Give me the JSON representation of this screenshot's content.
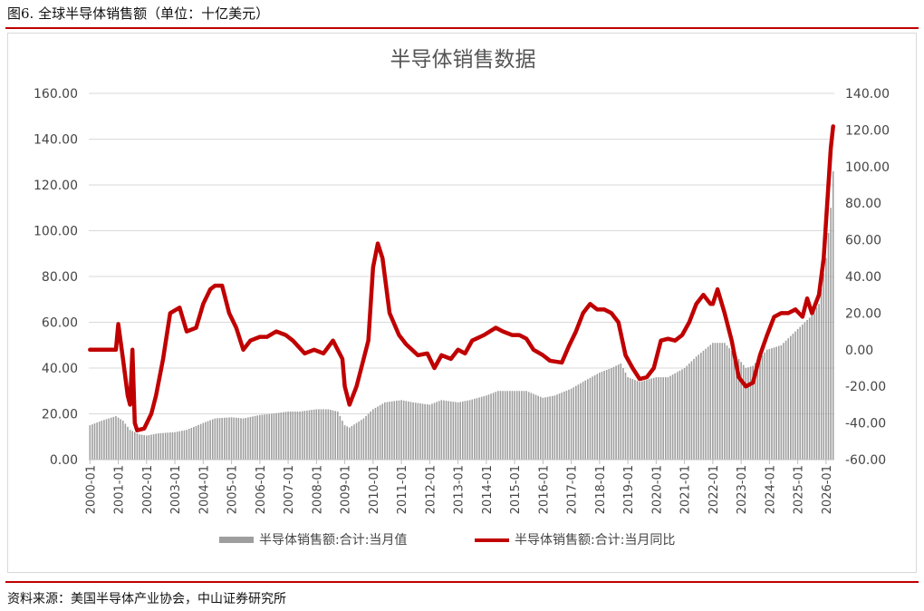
{
  "caption": "图6. 全球半导体销售额（单位：十亿美元）",
  "source": "资料来源：美国半导体产业协会，中山证券研究所",
  "colors": {
    "accent": "#c00000",
    "bar": "#9e9e9e",
    "grid": "#d9d9d9"
  },
  "chart_data": {
    "type": "bar+line",
    "title": "半导体销售数据",
    "grid": true,
    "legend_position": "bottom",
    "left_axis": {
      "min": 0,
      "max": 160,
      "step": 20,
      "ticks": [
        "0.00",
        "20.00",
        "40.00",
        "60.00",
        "80.00",
        "100.00",
        "120.00",
        "140.00",
        "160.00"
      ]
    },
    "right_axis": {
      "min": -60,
      "max": 140,
      "step": 20,
      "ticks": [
        "-60.00",
        "-40.00",
        "-20.00",
        "0.00",
        "20.00",
        "40.00",
        "60.00",
        "80.00",
        "100.00",
        "120.00",
        "140.00"
      ]
    },
    "x_ticks": [
      "2000-01",
      "2001-01",
      "2002-01",
      "2003-01",
      "2004-01",
      "2005-01",
      "2006-01",
      "2007-01",
      "2008-01",
      "2009-01",
      "2010-01",
      "2011-01",
      "2012-01",
      "2013-01",
      "2014-01",
      "2015-01",
      "2016-01",
      "2017-01",
      "2018-01",
      "2019-01",
      "2020-01",
      "2021-01",
      "2022-01",
      "2023-01",
      "2024-01",
      "2025-01",
      "2026-01"
    ],
    "x_start": "2000-01",
    "x_end": "2026-04",
    "series": [
      {
        "name": "半导体销售额:合计:当月值",
        "type": "bar",
        "axis": "left",
        "anchors": [
          [
            "2000-01",
            15
          ],
          [
            "2000-06",
            17
          ],
          [
            "2000-12",
            19
          ],
          [
            "2001-03",
            17
          ],
          [
            "2001-06",
            13
          ],
          [
            "2001-10",
            11
          ],
          [
            "2002-01",
            10.5
          ],
          [
            "2002-06",
            11.5
          ],
          [
            "2003-01",
            12
          ],
          [
            "2003-06",
            13
          ],
          [
            "2004-01",
            16
          ],
          [
            "2004-06",
            18
          ],
          [
            "2005-01",
            18.5
          ],
          [
            "2005-06",
            18
          ],
          [
            "2006-01",
            19.5
          ],
          [
            "2006-06",
            20
          ],
          [
            "2007-01",
            21
          ],
          [
            "2007-06",
            21
          ],
          [
            "2008-01",
            22
          ],
          [
            "2008-06",
            22
          ],
          [
            "2008-10",
            21
          ],
          [
            "2009-01",
            15
          ],
          [
            "2009-03",
            14
          ],
          [
            "2009-09",
            18
          ],
          [
            "2010-01",
            22
          ],
          [
            "2010-06",
            25
          ],
          [
            "2011-01",
            26
          ],
          [
            "2011-06",
            25
          ],
          [
            "2012-01",
            24
          ],
          [
            "2012-06",
            26
          ],
          [
            "2013-01",
            25
          ],
          [
            "2013-06",
            26
          ],
          [
            "2014-01",
            28
          ],
          [
            "2014-06",
            30
          ],
          [
            "2015-01",
            30
          ],
          [
            "2015-06",
            30
          ],
          [
            "2016-01",
            27
          ],
          [
            "2016-06",
            28
          ],
          [
            "2017-01",
            31
          ],
          [
            "2017-06",
            34
          ],
          [
            "2018-01",
            38
          ],
          [
            "2018-06",
            40
          ],
          [
            "2018-10",
            42
          ],
          [
            "2019-01",
            36
          ],
          [
            "2019-06",
            34
          ],
          [
            "2020-01",
            36
          ],
          [
            "2020-06",
            36
          ],
          [
            "2021-01",
            40
          ],
          [
            "2021-06",
            45
          ],
          [
            "2022-01",
            51
          ],
          [
            "2022-06",
            51
          ],
          [
            "2022-12",
            44
          ],
          [
            "2023-03",
            40
          ],
          [
            "2023-06",
            41
          ],
          [
            "2023-12",
            48
          ],
          [
            "2024-06",
            50
          ],
          [
            "2025-01",
            57
          ],
          [
            "2025-06",
            62
          ],
          [
            "2025-10",
            68
          ],
          [
            "2026-01",
            88
          ],
          [
            "2026-03",
            110
          ],
          [
            "2026-04",
            126
          ]
        ]
      },
      {
        "name": "半导体销售额:合计:当月同比",
        "type": "line",
        "axis": "right",
        "color": "#c00000",
        "anchors": [
          [
            "2000-01",
            0
          ],
          [
            "2000-12",
            0
          ],
          [
            "2001-01",
            14
          ],
          [
            "2001-03",
            -5
          ],
          [
            "2001-05",
            -25
          ],
          [
            "2001-06",
            -30
          ],
          [
            "2001-07",
            0
          ],
          [
            "2001-08",
            -40
          ],
          [
            "2001-09",
            -44
          ],
          [
            "2001-12",
            -43
          ],
          [
            "2002-03",
            -35
          ],
          [
            "2002-05",
            -25
          ],
          [
            "2002-08",
            -5
          ],
          [
            "2002-11",
            20
          ],
          [
            "2003-03",
            23
          ],
          [
            "2003-06",
            10
          ],
          [
            "2003-10",
            12
          ],
          [
            "2004-01",
            25
          ],
          [
            "2004-04",
            33
          ],
          [
            "2004-06",
            35
          ],
          [
            "2004-09",
            35
          ],
          [
            "2004-12",
            20
          ],
          [
            "2005-03",
            12
          ],
          [
            "2005-06",
            0
          ],
          [
            "2005-09",
            5
          ],
          [
            "2006-01",
            7
          ],
          [
            "2006-04",
            7
          ],
          [
            "2006-08",
            10
          ],
          [
            "2006-12",
            8
          ],
          [
            "2007-03",
            5
          ],
          [
            "2007-08",
            -2
          ],
          [
            "2007-12",
            0
          ],
          [
            "2008-04",
            -2
          ],
          [
            "2008-08",
            5
          ],
          [
            "2008-12",
            -5
          ],
          [
            "2009-01",
            -20
          ],
          [
            "2009-03",
            -30
          ],
          [
            "2009-06",
            -20
          ],
          [
            "2009-08",
            -10
          ],
          [
            "2009-11",
            5
          ],
          [
            "2010-01",
            45
          ],
          [
            "2010-03",
            58
          ],
          [
            "2010-05",
            50
          ],
          [
            "2010-08",
            20
          ],
          [
            "2010-12",
            8
          ],
          [
            "2011-03",
            3
          ],
          [
            "2011-08",
            -3
          ],
          [
            "2011-12",
            -2
          ],
          [
            "2012-03",
            -10
          ],
          [
            "2012-06",
            -3
          ],
          [
            "2012-10",
            -5
          ],
          [
            "2013-01",
            0
          ],
          [
            "2013-04",
            -2
          ],
          [
            "2013-07",
            5
          ],
          [
            "2013-12",
            8
          ],
          [
            "2014-05",
            12
          ],
          [
            "2014-08",
            10
          ],
          [
            "2014-12",
            8
          ],
          [
            "2015-03",
            8
          ],
          [
            "2015-06",
            6
          ],
          [
            "2015-09",
            0
          ],
          [
            "2016-01",
            -3
          ],
          [
            "2016-04",
            -6
          ],
          [
            "2016-09",
            -7
          ],
          [
            "2016-12",
            2
          ],
          [
            "2017-03",
            10
          ],
          [
            "2017-06",
            20
          ],
          [
            "2017-09",
            25
          ],
          [
            "2017-12",
            22
          ],
          [
            "2018-03",
            22
          ],
          [
            "2018-06",
            20
          ],
          [
            "2018-09",
            15
          ],
          [
            "2018-12",
            -3
          ],
          [
            "2019-03",
            -10
          ],
          [
            "2019-06",
            -16
          ],
          [
            "2019-09",
            -15
          ],
          [
            "2019-12",
            -10
          ],
          [
            "2020-03",
            5
          ],
          [
            "2020-06",
            6
          ],
          [
            "2020-09",
            5
          ],
          [
            "2020-12",
            8
          ],
          [
            "2021-03",
            15
          ],
          [
            "2021-06",
            25
          ],
          [
            "2021-09",
            30
          ],
          [
            "2021-12",
            25
          ],
          [
            "2022-01",
            25
          ],
          [
            "2022-03",
            33
          ],
          [
            "2022-06",
            20
          ],
          [
            "2022-09",
            5
          ],
          [
            "2022-12",
            -15
          ],
          [
            "2023-03",
            -20
          ],
          [
            "2023-06",
            -18
          ],
          [
            "2023-09",
            -3
          ],
          [
            "2023-12",
            8
          ],
          [
            "2024-03",
            18
          ],
          [
            "2024-06",
            20
          ],
          [
            "2024-09",
            20
          ],
          [
            "2024-12",
            22
          ],
          [
            "2025-03",
            18
          ],
          [
            "2025-05",
            28
          ],
          [
            "2025-07",
            20
          ],
          [
            "2025-10",
            30
          ],
          [
            "2025-12",
            50
          ],
          [
            "2026-01",
            70
          ],
          [
            "2026-02",
            90
          ],
          [
            "2026-03",
            110
          ],
          [
            "2026-04",
            122
          ]
        ]
      }
    ]
  }
}
